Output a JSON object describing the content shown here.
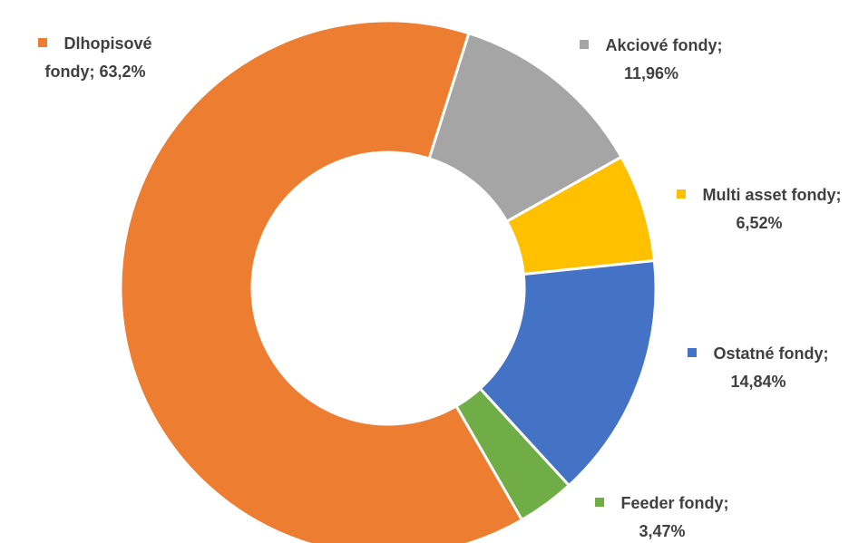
{
  "chart_data": {
    "type": "donut",
    "categories": [
      "Dlhopisové fondy",
      "Akciové fondy",
      "Multi asset fondy",
      "Ostatné fondy",
      "Feeder fondy"
    ],
    "values": [
      63.2,
      11.96,
      6.52,
      14.84,
      3.47
    ],
    "value_labels": [
      "63,2%",
      "11,96%",
      "6,52%",
      "14,84%",
      "3,47%"
    ],
    "label_separator": "; ",
    "colors": [
      "#ED7D31",
      "#A5A5A5",
      "#FFC000",
      "#4472C4",
      "#70AD47"
    ]
  }
}
